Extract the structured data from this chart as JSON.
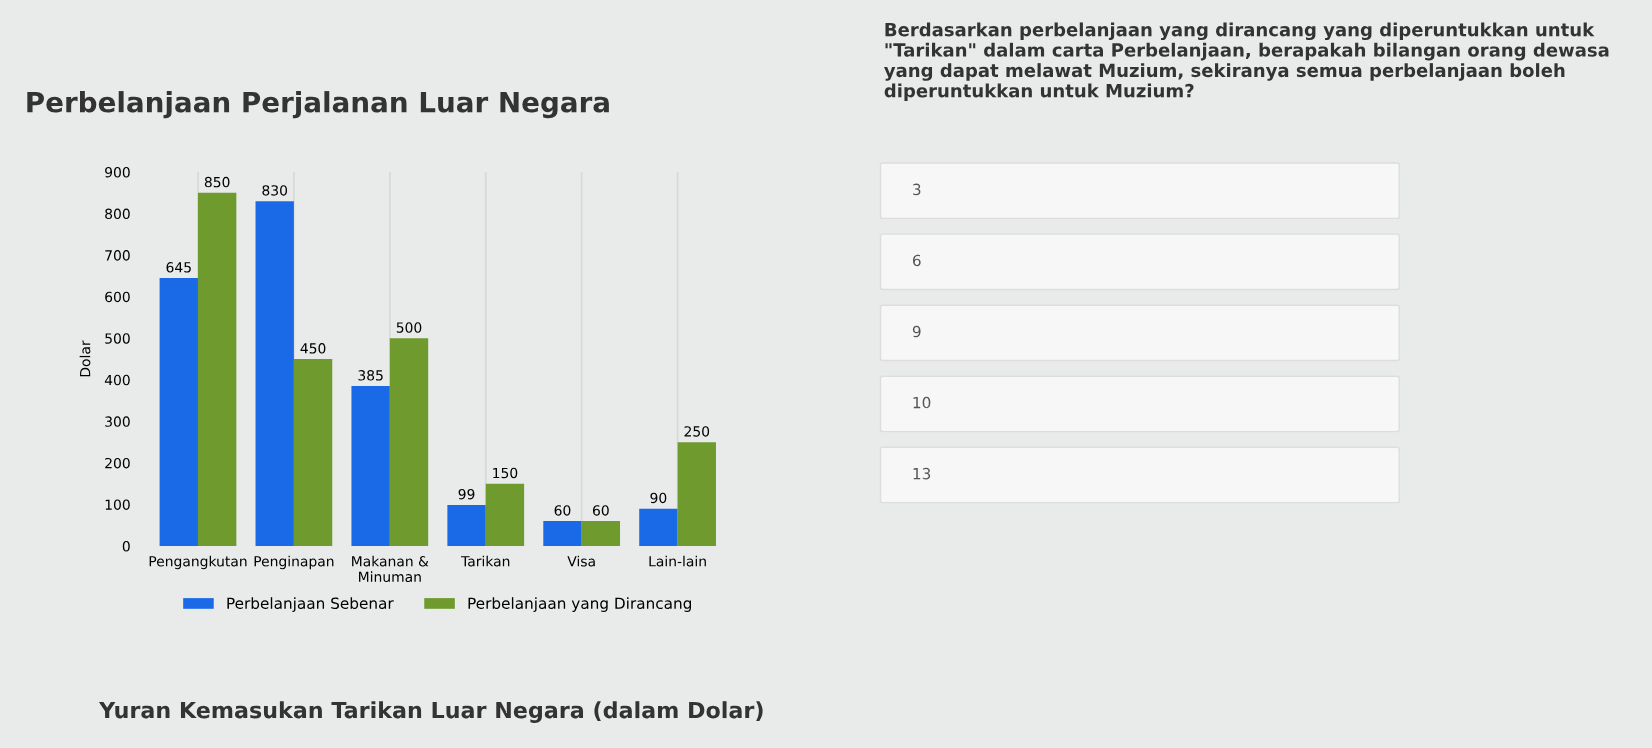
{
  "chart_data": {
    "type": "bar",
    "title": "Perbelanjaan Perjalanan Luar Negara",
    "ylabel": "Dolar",
    "categories": [
      "Pengangkutan",
      "Penginapan",
      "Makanan &\nMinuman",
      "Tarikan",
      "Visa",
      "Lain-lain"
    ],
    "series": [
      {
        "name": "Perbelanjaan Sebenar",
        "color": "#1a6ae8",
        "values": [
          645,
          830,
          385,
          99,
          60,
          90
        ]
      },
      {
        "name": "Perbelanjaan yang Dirancang",
        "color": "#6f9a2e",
        "values": [
          850,
          450,
          500,
          150,
          60,
          250
        ]
      }
    ],
    "ylim": [
      0,
      900
    ],
    "yticks": [
      0,
      100,
      200,
      300,
      400,
      500,
      600,
      700,
      800,
      900
    ],
    "grid": "x",
    "legend": "bottom",
    "data_labels": true,
    "annotations": [
      "Berdasarkan perbelanjaan yang dirancang yang diperuntukkan untuk \"Tarikan\" dalam carta Perbelanjaan, berapakah bilangan orang dewasa yang dapat melawat Muzium, sekiranya semua perbelanjaan boleh diperuntukkan untuk Muzium?",
      "3",
      "6",
      "9",
      "10",
      "13",
      "Yuran Kemasukan Tarikan Luar Negara (dalam Dolar)"
    ]
  }
}
